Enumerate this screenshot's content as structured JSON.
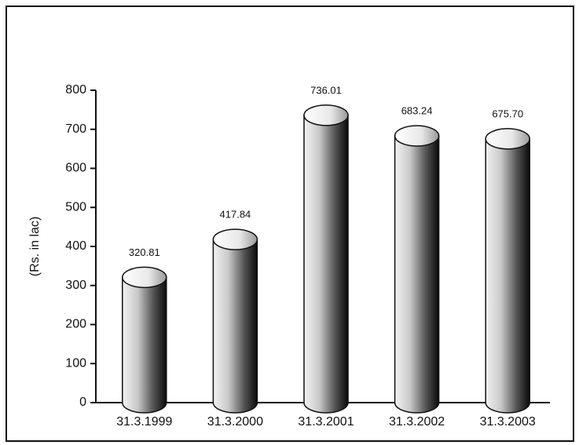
{
  "chart_data": {
    "type": "bar",
    "y_label": "(Rs. in lac)",
    "categories": [
      "31.3.1999",
      "31.3.2000",
      "31.3.2001",
      "31.3.2002",
      "31.3.2003"
    ],
    "values": [
      320.81,
      417.84,
      736.01,
      683.24,
      675.7
    ],
    "value_labels": [
      "320.81",
      "417.84",
      "736.01",
      "683.24",
      "675.70"
    ],
    "color": "#777777",
    "ylim": [
      0,
      800
    ],
    "yticks": [
      0,
      100,
      200,
      300,
      400,
      500,
      600,
      700,
      800
    ]
  }
}
